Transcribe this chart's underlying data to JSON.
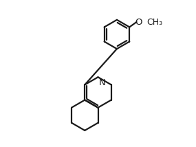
{
  "background": "#ffffff",
  "lc": "#1a1a1a",
  "lw": 1.6,
  "font_size": 9.5,
  "N_label": "N",
  "O_label": "O",
  "Me_label": "CH₃",
  "xlim": [
    -1.8,
    6.2
  ],
  "ylim": [
    -5.2,
    4.8
  ]
}
